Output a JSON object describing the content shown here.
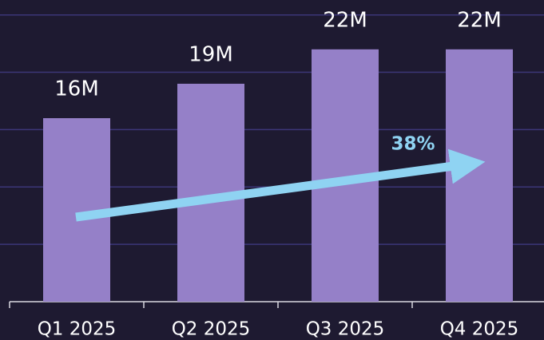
{
  "chart_data": {
    "type": "bar",
    "categories": [
      "Q1 2025",
      "Q2 2025",
      "Q3 2025",
      "Q4 2025"
    ],
    "values": [
      16,
      19,
      22,
      22
    ],
    "value_labels": [
      "16M",
      "19M",
      "22M",
      "22M"
    ],
    "color": "#9580c8",
    "ylim": [
      0,
      25
    ],
    "yticks": [
      0,
      5,
      10,
      15,
      20,
      25
    ],
    "grid": true,
    "annotation": "38%"
  }
}
